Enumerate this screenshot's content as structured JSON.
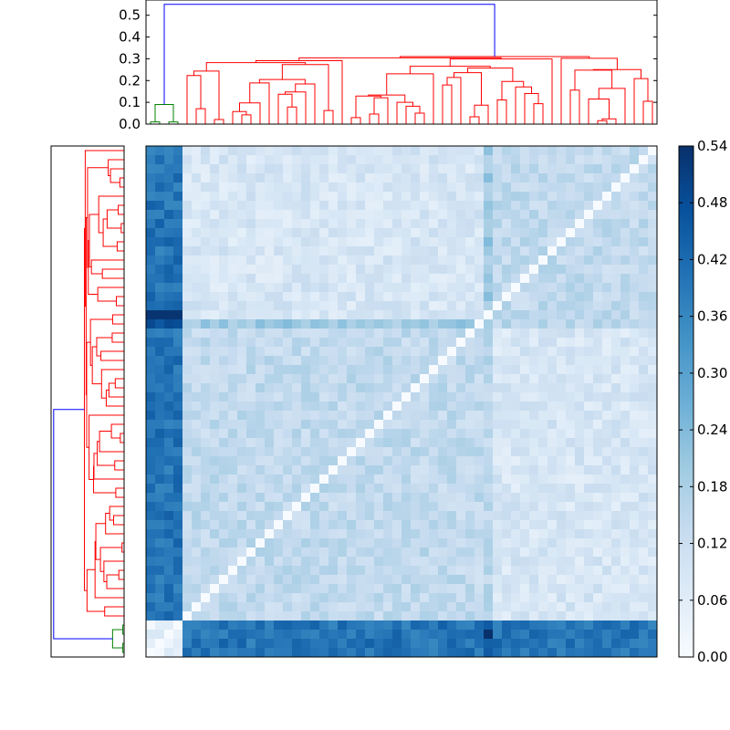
{
  "chart_data": [
    {
      "type": "heatmap",
      "name": "distance-matrix",
      "size": 56,
      "row_cluster_boundaries": [
        4,
        52,
        53
      ],
      "value_range": [
        0.0,
        0.54
      ],
      "colormap": "Blues",
      "axes": "none"
    },
    {
      "type": "dendrogram",
      "name": "top-dendrogram",
      "orientation": "top",
      "ylim": [
        0.0,
        0.57
      ],
      "yticks": [
        "0.0",
        "0.1",
        "0.2",
        "0.3",
        "0.4",
        "0.5"
      ],
      "link_colors": {
        "root": "blue",
        "large_cluster": "red",
        "small_cluster": "green"
      },
      "root_height": 0.55,
      "large_cluster_height": 0.31,
      "small_cluster_height": 0.09
    },
    {
      "type": "dendrogram",
      "name": "left-dendrogram",
      "orientation": "left",
      "link_colors": {
        "root": "blue",
        "large_cluster": "red",
        "small_cluster": "green"
      },
      "axes": "none"
    },
    {
      "type": "colorbar",
      "name": "colorbar",
      "vmin": 0.0,
      "vmax": 0.54,
      "ticks": [
        "0.00",
        "0.06",
        "0.12",
        "0.18",
        "0.24",
        "0.30",
        "0.36",
        "0.42",
        "0.48",
        "0.54"
      ]
    }
  ],
  "colors": {
    "dendrogram_root": "#0000ff",
    "dendrogram_main": "#ff0000",
    "dendrogram_small": "#008000",
    "cmap_low": "#f7fbff",
    "cmap_high": "#08306b"
  }
}
